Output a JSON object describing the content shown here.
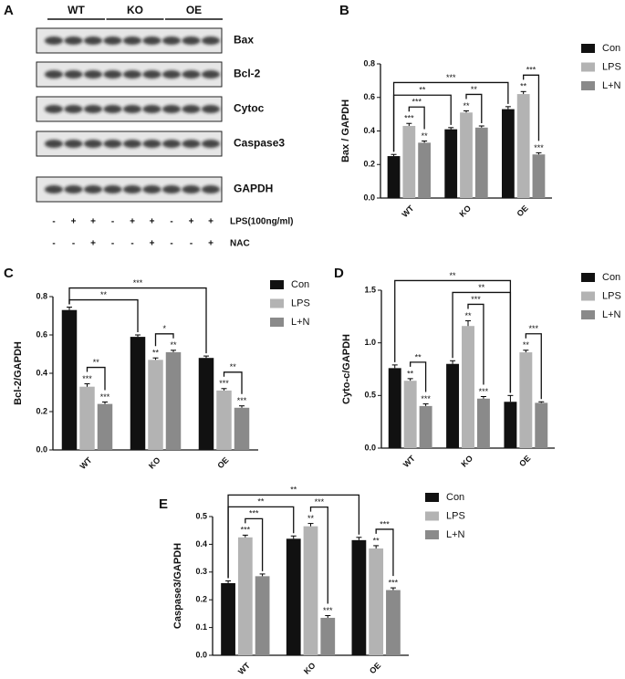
{
  "blot": {
    "panel_label": "A",
    "groups": [
      "WT",
      "KO",
      "OE"
    ],
    "proteins": [
      "Bax",
      "Bcl-2",
      "Cytoc",
      "Caspase3",
      "GAPDH"
    ],
    "treatments": [
      {
        "name": "LPS(100ng/ml)",
        "signs": [
          "-",
          "+",
          "+",
          "-",
          "+",
          "+",
          "-",
          "+",
          "+"
        ]
      },
      {
        "name": "NAC",
        "signs": [
          "-",
          "-",
          "+",
          "-",
          "-",
          "+",
          "-",
          "-",
          "+"
        ]
      }
    ]
  },
  "chart_data": [
    {
      "type": "bar",
      "panel_label": "B",
      "y_label": "Bax / GAPDH",
      "categories": [
        "WT",
        "KO",
        "OE"
      ],
      "series": [
        {
          "name": "Con",
          "color": "#111111",
          "values": [
            0.25,
            0.41,
            0.53
          ],
          "errors": [
            0.01,
            0.01,
            0.015
          ],
          "significance": [
            null,
            null,
            null
          ]
        },
        {
          "name": "LPS",
          "color": "#b3b3b3",
          "values": [
            0.43,
            0.51,
            0.62
          ],
          "errors": [
            0.015,
            0.01,
            0.015
          ],
          "significance": [
            "***",
            "**",
            "**"
          ]
        },
        {
          "name": "L+N",
          "color": "#8a8a8a",
          "values": [
            0.33,
            0.42,
            0.26
          ],
          "errors": [
            0.01,
            0.01,
            0.01
          ],
          "significance": [
            "**",
            null,
            "***"
          ]
        }
      ],
      "ylim": [
        0,
        0.8
      ],
      "yticks": [
        {
          "value": 0,
          "label": "0.0"
        },
        0.2,
        0.4,
        0.6,
        0.8
      ],
      "legend": "right",
      "brackets": [
        {
          "from": [
            1,
            0
          ],
          "to": [
            2,
            0
          ],
          "label": "***"
        },
        {
          "from": [
            1,
            1
          ],
          "to": [
            2,
            1
          ],
          "label": "**"
        },
        {
          "from": [
            1,
            2
          ],
          "to": [
            2,
            2
          ],
          "label": "***"
        },
        {
          "from": [
            0,
            0
          ],
          "to": [
            0,
            1
          ],
          "label": "**"
        },
        {
          "from": [
            0,
            0
          ],
          "to": [
            0,
            2
          ],
          "label": "***"
        }
      ]
    },
    {
      "type": "bar",
      "panel_label": "C",
      "y_label": "Bcl-2/GAPDH",
      "categories": [
        "WT",
        "KO",
        "OE"
      ],
      "series": [
        {
          "name": "Con",
          "color": "#111111",
          "values": [
            0.73,
            0.59,
            0.48
          ],
          "errors": [
            0.015,
            0.01,
            0.01
          ],
          "significance": [
            null,
            null,
            null
          ]
        },
        {
          "name": "LPS",
          "color": "#b3b3b3",
          "values": [
            0.33,
            0.47,
            0.31
          ],
          "errors": [
            0.015,
            0.01,
            0.01
          ],
          "significance": [
            "***",
            "**",
            "***"
          ]
        },
        {
          "name": "L+N",
          "color": "#8a8a8a",
          "values": [
            0.24,
            0.51,
            0.22
          ],
          "errors": [
            0.01,
            0.01,
            0.01
          ],
          "significance": [
            "***",
            "**",
            "***"
          ]
        }
      ],
      "ylim": [
        0,
        0.8
      ],
      "yticks": [
        {
          "value": 0,
          "label": "0.0"
        },
        0.2,
        0.4,
        0.6,
        0.8
      ],
      "legend": "right",
      "brackets": [
        {
          "from": [
            1,
            0
          ],
          "to": [
            2,
            0
          ],
          "label": "**"
        },
        {
          "from": [
            1,
            1
          ],
          "to": [
            2,
            1
          ],
          "label": "*"
        },
        {
          "from": [
            1,
            2
          ],
          "to": [
            2,
            2
          ],
          "label": "**"
        },
        {
          "from": [
            0,
            0
          ],
          "to": [
            0,
            1
          ],
          "label": "**"
        },
        {
          "from": [
            0,
            0
          ],
          "to": [
            0,
            2
          ],
          "label": "***"
        }
      ]
    },
    {
      "type": "bar",
      "panel_label": "D",
      "y_label": "Cyto-c/GAPDH",
      "categories": [
        "WT",
        "KO",
        "OE"
      ],
      "series": [
        {
          "name": "Con",
          "color": "#111111",
          "values": [
            0.76,
            0.8,
            0.44
          ],
          "errors": [
            0.03,
            0.03,
            0.06
          ],
          "significance": [
            null,
            null,
            null
          ]
        },
        {
          "name": "LPS",
          "color": "#b3b3b3",
          "values": [
            0.64,
            1.16,
            0.91
          ],
          "errors": [
            0.02,
            0.05,
            0.02
          ],
          "significance": [
            "**",
            "**",
            "**"
          ]
        },
        {
          "name": "L+N",
          "color": "#8a8a8a",
          "values": [
            0.4,
            0.47,
            0.43
          ],
          "errors": [
            0.02,
            0.02,
            0.01
          ],
          "significance": [
            "***",
            "***",
            null
          ]
        }
      ],
      "ylim": [
        0,
        1.5
      ],
      "yticks": [
        {
          "value": 0,
          "label": "0.0"
        },
        0.5,
        {
          "value": 1,
          "label": "1.0"
        },
        1.5
      ],
      "legend": "right",
      "brackets": [
        {
          "from": [
            1,
            0
          ],
          "to": [
            2,
            0
          ],
          "label": "**"
        },
        {
          "from": [
            1,
            1
          ],
          "to": [
            2,
            1
          ],
          "label": "***"
        },
        {
          "from": [
            1,
            2
          ],
          "to": [
            2,
            2
          ],
          "label": "***"
        },
        {
          "from": [
            0,
            1
          ],
          "to": [
            0,
            2
          ],
          "label": "**"
        },
        {
          "from": [
            0,
            0
          ],
          "to": [
            0,
            2
          ],
          "label": "**"
        }
      ]
    },
    {
      "type": "bar",
      "panel_label": "E",
      "y_label": "Caspase3/GAPDH",
      "categories": [
        "WT",
        "KO",
        "OE"
      ],
      "series": [
        {
          "name": "Con",
          "color": "#111111",
          "values": [
            0.26,
            0.42,
            0.415
          ],
          "errors": [
            0.008,
            0.01,
            0.01
          ],
          "significance": [
            null,
            null,
            null
          ]
        },
        {
          "name": "LPS",
          "color": "#b3b3b3",
          "values": [
            0.425,
            0.465,
            0.385
          ],
          "errors": [
            0.008,
            0.01,
            0.01
          ],
          "significance": [
            "***",
            "**",
            "**"
          ]
        },
        {
          "name": "L+N",
          "color": "#8a8a8a",
          "values": [
            0.285,
            0.135,
            0.235
          ],
          "errors": [
            0.008,
            0.008,
            0.008
          ],
          "significance": [
            null,
            "***",
            "***"
          ]
        }
      ],
      "ylim": [
        0,
        0.5
      ],
      "yticks": [
        {
          "value": 0,
          "label": "0.0"
        },
        0.1,
        0.2,
        0.3,
        0.4,
        0.5
      ],
      "legend": "right",
      "brackets": [
        {
          "from": [
            1,
            0
          ],
          "to": [
            2,
            0
          ],
          "label": "***"
        },
        {
          "from": [
            1,
            1
          ],
          "to": [
            2,
            1
          ],
          "label": "***"
        },
        {
          "from": [
            1,
            2
          ],
          "to": [
            2,
            2
          ],
          "label": "***"
        },
        {
          "from": [
            0,
            0
          ],
          "to": [
            0,
            1
          ],
          "label": "**"
        },
        {
          "from": [
            0,
            0
          ],
          "to": [
            0,
            2
          ],
          "label": "**"
        }
      ]
    }
  ]
}
